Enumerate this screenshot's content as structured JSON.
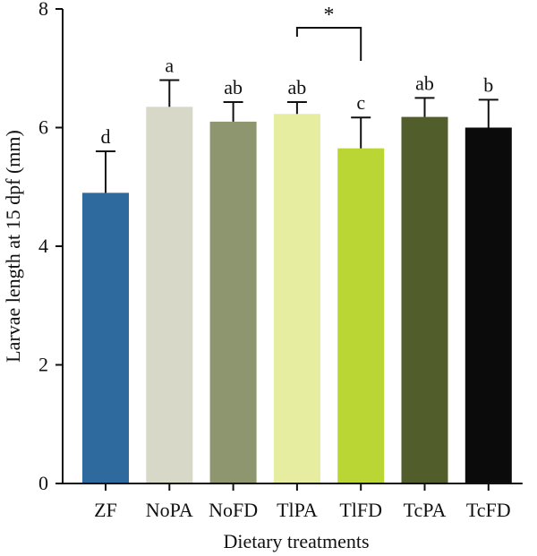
{
  "chart_data": {
    "type": "bar",
    "title": "",
    "xlabel": "Dietary treatments",
    "ylabel": "Larvae length at 15 dpf (mm)",
    "ylim": [
      0,
      8
    ],
    "yticks": [
      0,
      2,
      4,
      6,
      8
    ],
    "grid": false,
    "categories": [
      "ZF",
      "NoPA",
      "NoFD",
      "TlPA",
      "TlFD",
      "TcPA",
      "TcFD"
    ],
    "values": [
      4.9,
      6.35,
      6.1,
      6.23,
      5.65,
      6.18,
      6.0
    ],
    "errors": [
      0.7,
      0.45,
      0.33,
      0.2,
      0.52,
      0.32,
      0.47
    ],
    "colors": [
      "#2f6a9f",
      "#d7d8c8",
      "#8e9670",
      "#e6eca0",
      "#bad634",
      "#515e2b",
      "#0b0b0b"
    ],
    "significance_letters": [
      "d",
      "a",
      "ab",
      "ab",
      "c",
      "ab",
      "b"
    ],
    "comparison": {
      "from": "TlPA",
      "to": "TlFD",
      "label": "*"
    }
  }
}
